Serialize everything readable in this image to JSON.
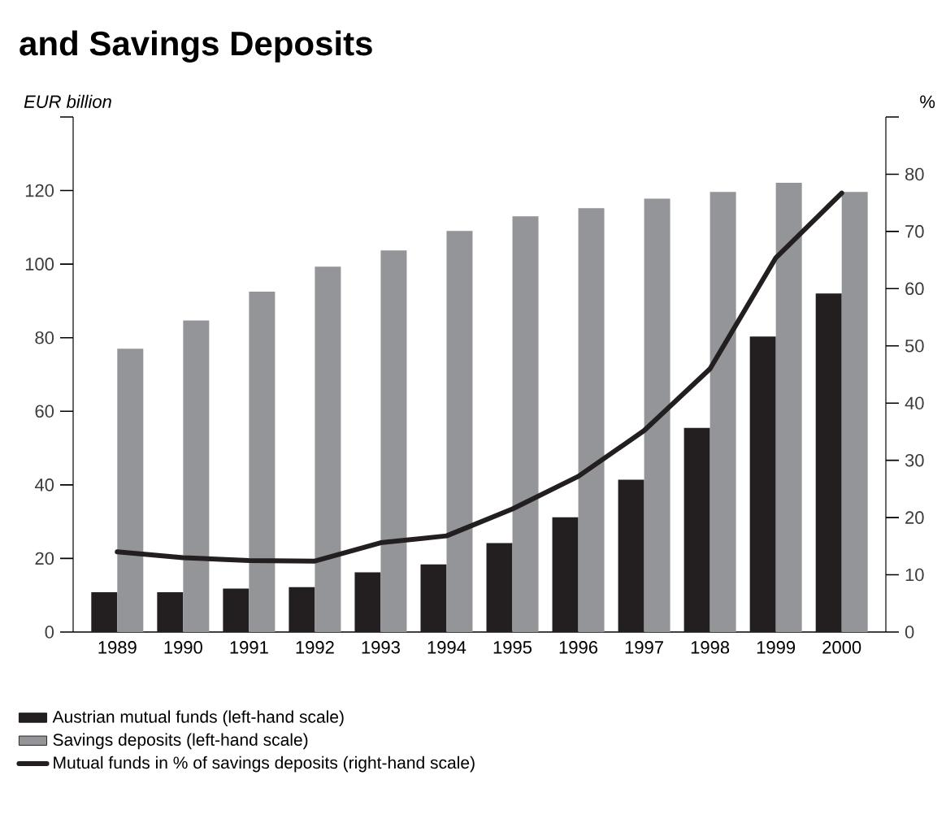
{
  "chart_data": {
    "type": "bar",
    "title": "and Savings Deposits",
    "ylabel": "EUR billion",
    "y2label": "%",
    "categories": [
      "1989",
      "1990",
      "1991",
      "1992",
      "1993",
      "1994",
      "1995",
      "1996",
      "1997",
      "1998",
      "1999",
      "2000"
    ],
    "series": [
      {
        "name": "Austrian mutual funds (left-hand scale)",
        "color": "#231f20",
        "values": [
          10.8,
          10.8,
          11.8,
          12.2,
          16.2,
          18.4,
          24.2,
          31.2,
          41.4,
          55.5,
          80.3,
          92
        ]
      },
      {
        "name": "Savings deposits (left-hand scale)",
        "color": "#939598",
        "values": [
          77,
          84.7,
          92.5,
          99.3,
          103.7,
          109,
          113,
          115.2,
          117.8,
          119.6,
          122.1,
          119.6
        ]
      },
      {
        "name": "Mutual funds in % of savings deposits (right-hand scale)",
        "type": "line",
        "axis": "y2",
        "color": "#231f20",
        "values": [
          14.0,
          13.0,
          12.5,
          12.4,
          15.6,
          16.8,
          21.5,
          27.2,
          35.2,
          46,
          65.4,
          76.7
        ]
      }
    ],
    "ylim": [
      0,
      140
    ],
    "yticks": [
      0,
      20,
      40,
      60,
      80,
      100,
      120,
      {
        "value": 140,
        "label": null
      }
    ],
    "y2lim": [
      0,
      90
    ],
    "y2ticks": [
      0,
      10,
      20,
      30,
      40,
      50,
      60,
      70,
      80,
      {
        "value": 90,
        "label": null
      }
    ],
    "legend": "bottom"
  }
}
